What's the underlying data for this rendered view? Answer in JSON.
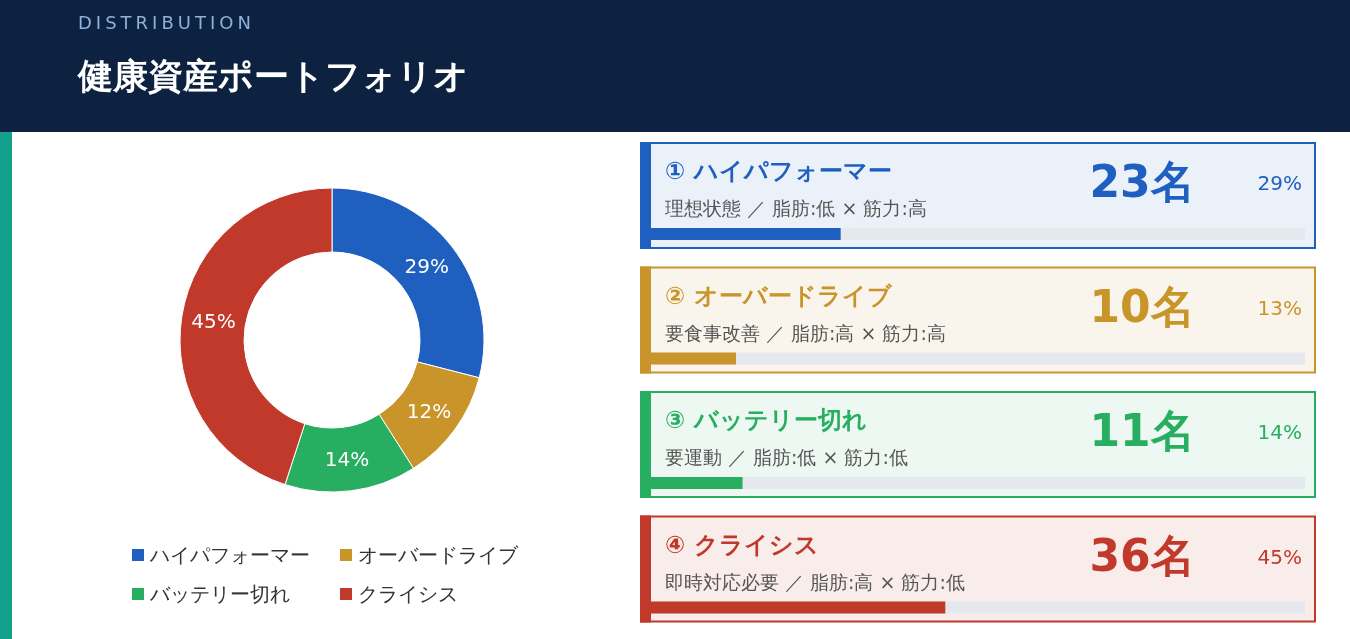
{
  "chart_data": [
    {
      "type": "donut",
      "subtitle": "DISTRIBUTION",
      "title": "健康資産ポートフォリオ",
      "categories": [
        "ハイパフォーマー",
        "オーバードライブ",
        "バッテリー切れ",
        "クライシス"
      ],
      "values": [
        29,
        12,
        14,
        45
      ],
      "value_labels": [
        "29%",
        "12%",
        "14%",
        "45%"
      ],
      "colors": [
        "#1f5fbf",
        "#c9952a",
        "#27ae60",
        "#c0392b"
      ],
      "legend": "bottom"
    },
    {
      "type": "bar",
      "orientation": "horizontal",
      "categories": [
        "① ハイパフォーマー",
        "② オーバードライブ",
        "③ バッテリー切れ",
        "④ クライシス"
      ],
      "values": [
        29,
        13,
        14,
        45
      ],
      "value_labels": [
        "29%",
        "13%",
        "14%",
        "45%"
      ],
      "colors": [
        "#1f5fbf",
        "#c9952a",
        "#27ae60",
        "#c0392b"
      ],
      "xlim": [
        0,
        100
      ],
      "annotations": [
        "理想状態 ／ 脂肪:低 × 筋力:高",
        "23名",
        "要食事改善 ／ 脂肪:高 × 筋力:高",
        "10名",
        "要運動 ／ 脂肪:低 × 筋力:低",
        "11名",
        "即時対応必要 ／ 脂肪:高 × 筋力:低",
        "36名"
      ]
    }
  ]
}
